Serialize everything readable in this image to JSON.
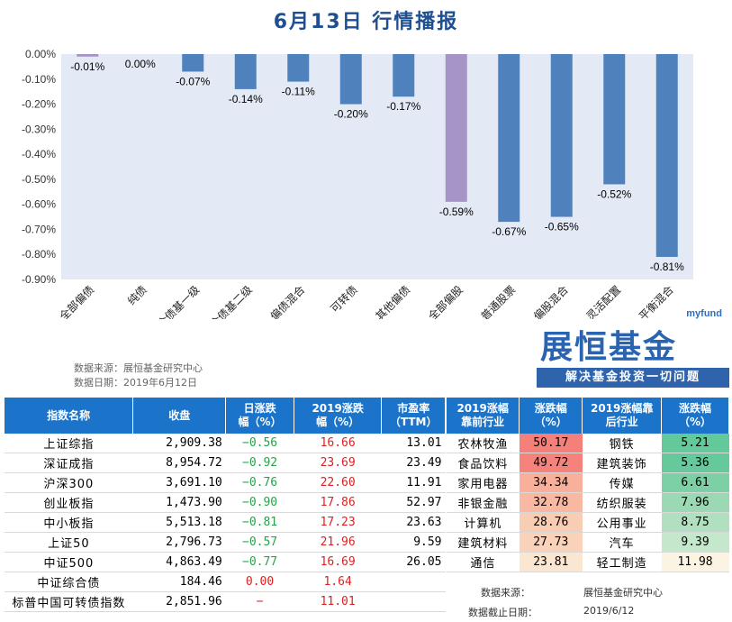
{
  "title": "6月13日  行情播报",
  "chart_data": {
    "type": "bar",
    "categories": [
      "（总）全部偏债",
      "纯债",
      "混合债基一级",
      "混合债基二级",
      "偏债混合",
      "可转债",
      "其他偏债",
      "（总）全部偏股",
      "普通股票",
      "偏股混合",
      "灵活配置",
      "平衡混合"
    ],
    "values": [
      -0.01,
      0.0,
      -0.07,
      -0.14,
      -0.11,
      -0.2,
      -0.17,
      -0.59,
      -0.67,
      -0.65,
      -0.52,
      -0.81
    ],
    "value_labels": [
      "-0.01%",
      "0.00%",
      "-0.07%",
      "-0.14%",
      "-0.11%",
      "-0.20%",
      "-0.17%",
      "-0.59%",
      "-0.67%",
      "-0.65%",
      "-0.52%",
      "-0.81%"
    ],
    "ylim": [
      -0.9,
      0.0
    ],
    "yticks": [
      "0.00%",
      "-0.10%",
      "-0.20%",
      "-0.30%",
      "-0.40%",
      "-0.50%",
      "-0.60%",
      "-0.70%",
      "-0.80%",
      "-0.90%"
    ],
    "colors": {
      "default": "#4f81bd",
      "highlight": "#a794c6",
      "plot_bg": "#e4eaf5"
    },
    "highlight_indices": [
      0,
      7
    ],
    "xlabel": "",
    "ylabel": ""
  },
  "source": {
    "line1": "数据来源：展恒基金研究中心",
    "line2": "数据日期：2019年6月12日"
  },
  "logo": {
    "tag": "myfund",
    "name": "展恒基金",
    "slogan": "解决基金投资一切问题"
  },
  "index_table": {
    "headers": [
      "指数名称",
      "收盘",
      "日涨跌\n幅（%）",
      "2019涨跌\n幅（%）",
      "市盈率\n（TTM）"
    ],
    "rows": [
      {
        "name": "上证综指",
        "close": "2,909.38",
        "day": "−0.56",
        "ytd": "16.66",
        "pe": "13.01",
        "dayc": "green",
        "ytdc": "red"
      },
      {
        "name": "深证成指",
        "close": "8,954.72",
        "day": "−0.92",
        "ytd": "23.69",
        "pe": "23.49",
        "dayc": "green",
        "ytdc": "red"
      },
      {
        "name": "沪深300",
        "close": "3,691.10",
        "day": "−0.76",
        "ytd": "22.60",
        "pe": "11.91",
        "dayc": "green",
        "ytdc": "red"
      },
      {
        "name": "创业板指",
        "close": "1,473.90",
        "day": "−0.90",
        "ytd": "17.86",
        "pe": "52.97",
        "dayc": "green",
        "ytdc": "red"
      },
      {
        "name": "中小板指",
        "close": "5,513.18",
        "day": "−0.81",
        "ytd": "17.23",
        "pe": "23.63",
        "dayc": "green",
        "ytdc": "red"
      },
      {
        "name": "上证50",
        "close": "2,796.73",
        "day": "−0.57",
        "ytd": "21.96",
        "pe": "9.59",
        "dayc": "green",
        "ytdc": "red"
      },
      {
        "name": "中证500",
        "close": "4,863.49",
        "day": "−0.77",
        "ytd": "16.69",
        "pe": "26.05",
        "dayc": "green",
        "ytdc": "red"
      },
      {
        "name": "中证综合债",
        "close": "184.46",
        "day": "0.00",
        "ytd": "1.64",
        "pe": "",
        "dayc": "red",
        "ytdc": "red"
      },
      {
        "name": "标普中国可转债指数",
        "close": "2,851.96",
        "day": "−",
        "ytd": "11.01",
        "pe": "",
        "dayc": "red",
        "ytdc": "red"
      }
    ]
  },
  "industry_table": {
    "headers": [
      "2019涨幅\n靠前行业",
      "涨跌幅\n（%）",
      "2019涨幅靠\n后行业",
      "涨跌幅\n（%）"
    ],
    "rows": [
      {
        "top": "农林牧渔",
        "top_val": "50.17",
        "top_bg": "#f5807a",
        "bot": "钢铁",
        "bot_val": "5.21",
        "bot_bg": "#63c89a"
      },
      {
        "top": "食品饮料",
        "top_val": "49.72",
        "top_bg": "#f5827b",
        "bot": "建筑装饰",
        "bot_val": "5.36",
        "bot_bg": "#66c99b"
      },
      {
        "top": "家用电器",
        "top_val": "34.34",
        "top_bg": "#f8b09b",
        "bot": "传媒",
        "bot_val": "6.61",
        "bot_bg": "#7dd0a5"
      },
      {
        "top": "非银金融",
        "top_val": "32.78",
        "top_bg": "#f8b8a2",
        "bot": "纺织服装",
        "bot_val": "7.96",
        "bot_bg": "#9ad9b3"
      },
      {
        "top": "计算机",
        "top_val": "28.76",
        "top_bg": "#f9ccb4",
        "bot": "公用事业",
        "bot_val": "8.75",
        "bot_bg": "#b0e0bf"
      },
      {
        "top": "建筑材料",
        "top_val": "27.73",
        "top_bg": "#fad2ba",
        "bot": "汽车",
        "bot_val": "9.39",
        "bot_bg": "#c5e7cb"
      },
      {
        "top": "通信",
        "top_val": "23.81",
        "top_bg": "#fbe6d2",
        "bot": "轻工制造",
        "bot_val": "11.98",
        "bot_bg": "#fbf4e3"
      }
    ],
    "footer": {
      "src_label": "数据来源：",
      "src_value": "展恒基金研究中心",
      "date_label": "数据截止日期：",
      "date_value": "2019/6/12"
    }
  }
}
